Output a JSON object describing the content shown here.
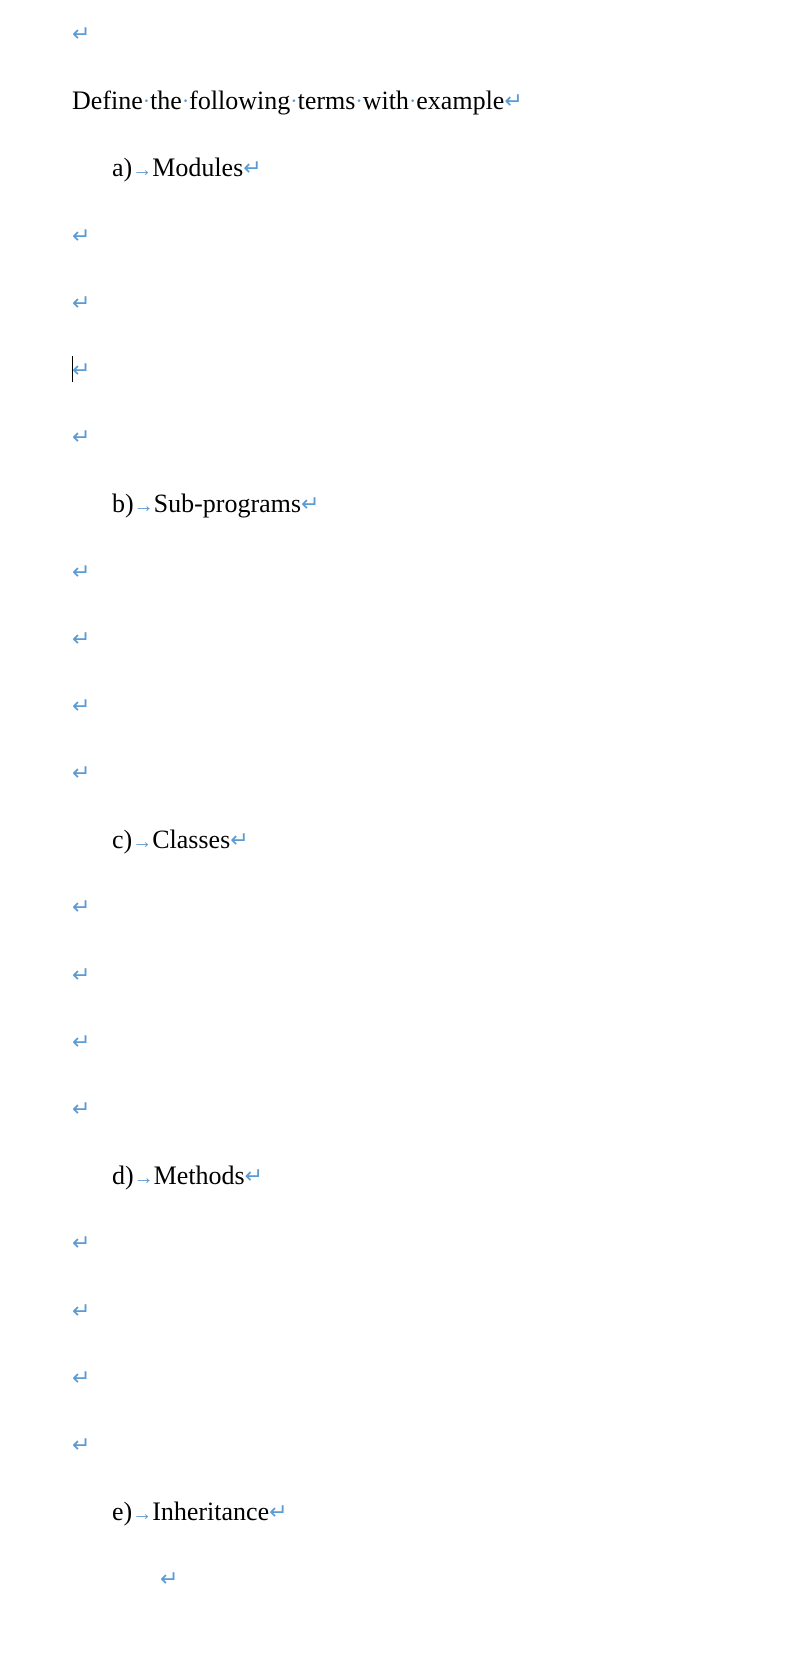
{
  "heading": {
    "words": [
      "Define",
      "the",
      "following",
      "terms",
      "with",
      "example"
    ]
  },
  "items": [
    {
      "letter": "a)",
      "text": "Modules"
    },
    {
      "letter": "b)",
      "text": "Sub-programs"
    },
    {
      "letter": "c)",
      "text": "Classes"
    },
    {
      "letter": "d)",
      "text": "Methods"
    },
    {
      "letter": "e)",
      "text": "Inheritance"
    }
  ],
  "marks": {
    "pilcrow": "↵",
    "tab": "→",
    "space_dot": "·"
  },
  "colors": {
    "mark": "#5b9bd5",
    "text": "#000000",
    "background": "#ffffff"
  }
}
